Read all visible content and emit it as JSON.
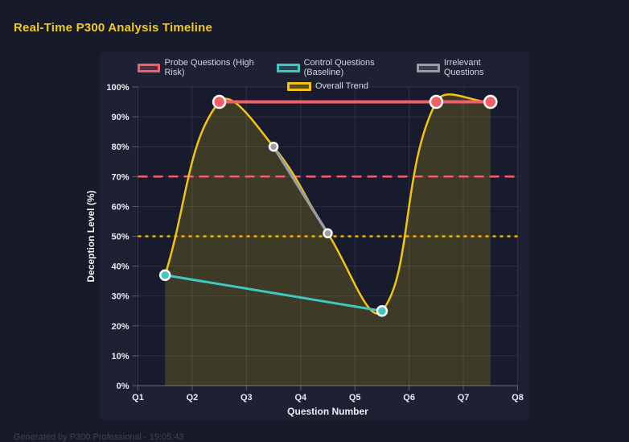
{
  "page": {
    "title": "Real-Time P300 Analysis Timeline",
    "footer": "Generated by P300 Professional - 19:05:43"
  },
  "colors": {
    "page_bg": "#171a29",
    "panel_bg": "#1d2133",
    "plot_bg": "#181b2e",
    "grid": "rgba(255,255,255,0.09)",
    "axis_border": "rgba(255,255,255,0.28)",
    "tick_label": "#e9eaef",
    "axis_title": "#eef0f4",
    "legend_text": "#d3d5de",
    "title_text": "#f0c929",
    "footer_text": "#3d4357",
    "point_border": "#ffffff"
  },
  "chart_data": {
    "type": "line",
    "xlabel": "Question Number",
    "ylabel": "Deception Level (%)",
    "xlim": [
      1,
      8
    ],
    "ylim": [
      0,
      100
    ],
    "grid": true,
    "legend_position": "top",
    "x_ticks": [
      "Q1",
      "Q2",
      "Q3",
      "Q4",
      "Q5",
      "Q6",
      "Q7",
      "Q8"
    ],
    "y_ticks": [
      {
        "value": 0,
        "label": "0%"
      },
      {
        "value": 10,
        "label": "10%"
      },
      {
        "value": 20,
        "label": "20%"
      },
      {
        "value": 30,
        "label": "30%"
      },
      {
        "value": 40,
        "label": "40%"
      },
      {
        "value": 50,
        "label": "50%"
      },
      {
        "value": 60,
        "label": "60%"
      },
      {
        "value": 70,
        "label": "70%"
      },
      {
        "value": 80,
        "label": "80%"
      },
      {
        "value": 90,
        "label": "90%"
      },
      {
        "value": 100,
        "label": "100%"
      }
    ],
    "series": [
      {
        "name": "Probe Questions (High Risk)",
        "color": "#f25f68",
        "x": [
          2.5,
          6.5,
          7.5
        ],
        "values": [
          95,
          95,
          95
        ],
        "line_width": 4,
        "point_radius": 7.5,
        "smooth": false,
        "fill": false
      },
      {
        "name": "Control Questions (Baseline)",
        "color": "#40c8c0",
        "x": [
          1.5,
          5.5
        ],
        "values": [
          37,
          25
        ],
        "line_width": 3,
        "point_radius": 6,
        "smooth": false,
        "fill": false
      },
      {
        "name": "Irrelevant Questions",
        "color": "#9b9ba3",
        "x": [
          3.5,
          4.5
        ],
        "values": [
          80,
          51
        ],
        "line_width": 3.5,
        "point_radius": 5,
        "smooth": false,
        "fill": false
      },
      {
        "name": "Overall Trend",
        "color": "#f2c40f",
        "x": [
          1.5,
          2.5,
          3.5,
          4.5,
          5.5,
          6.5,
          7.5
        ],
        "values": [
          37,
          95,
          80,
          51,
          25,
          95,
          95
        ],
        "line_width": 2.5,
        "point_radius": 0,
        "smooth": true,
        "fill": true,
        "fill_color": "rgba(255,214,10,0.17)"
      }
    ],
    "thresholds": [
      {
        "value": 70,
        "color": "#f25f68",
        "style": "dashed",
        "dash": "12 7",
        "width": 2.5
      },
      {
        "value": 50,
        "color": "#e6b800",
        "style": "dotted",
        "dash": "4 5",
        "width": 2.5
      }
    ]
  }
}
